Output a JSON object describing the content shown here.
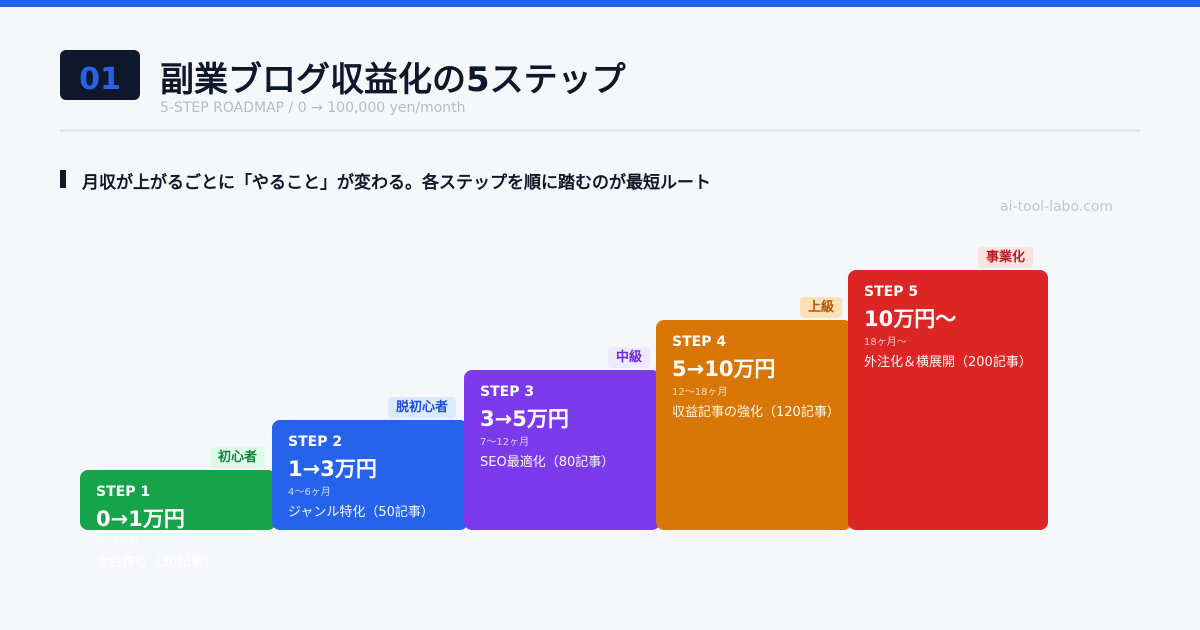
{
  "header": {
    "number": "01",
    "title": "副業ブログ収益化の5ステップ",
    "subtitle": "5-STEP ROADMAP / 0 → 100,000 yen/month"
  },
  "lead": "月収が上がるごとに「やること」が変わる。各ステップを順に踏むのが最短ルート",
  "site": "ai-tool-labo.com",
  "colors": {
    "accent": "#2563eb",
    "dark": "#0f172a",
    "step1": "#16a34a",
    "step2": "#2563eb",
    "step3": "#7c3aed",
    "step4": "#d97706",
    "step5": "#dc2626"
  },
  "steps": [
    {
      "label": "STEP 1",
      "range": "0→1万円",
      "duration": "1〜3ヶ月",
      "task": "土台作り（30記事）",
      "level": "初心者"
    },
    {
      "label": "STEP 2",
      "range": "1→3万円",
      "duration": "4〜6ヶ月",
      "task": "ジャンル特化（50記事）",
      "level": "脱初心者"
    },
    {
      "label": "STEP 3",
      "range": "3→5万円",
      "duration": "7〜12ヶ月",
      "task": "SEO最適化（80記事）",
      "level": "中級"
    },
    {
      "label": "STEP 4",
      "range": "5→10万円",
      "duration": "12〜18ヶ月",
      "task": "収益記事の強化（120記事）",
      "level": "上級"
    },
    {
      "label": "STEP 5",
      "range": "10万円〜",
      "duration": "18ヶ月〜",
      "task": "外注化＆横展開（200記事）",
      "level": "事業化"
    }
  ]
}
